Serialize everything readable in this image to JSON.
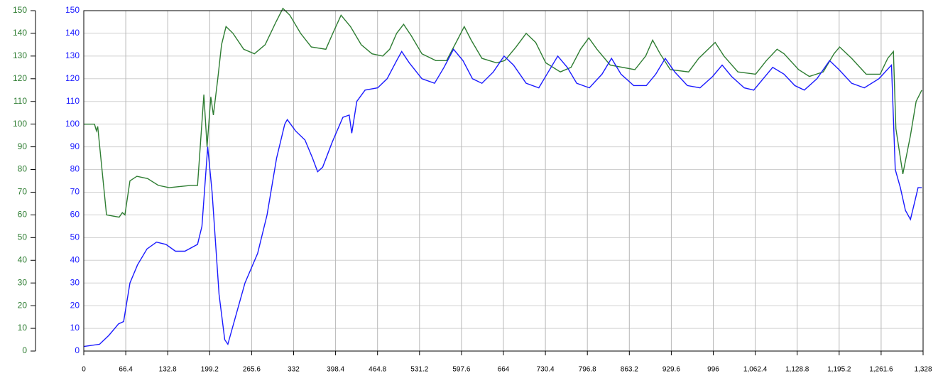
{
  "chart_data": {
    "type": "line",
    "xlim": [
      0,
      1328
    ],
    "xticks": [
      0,
      66.4,
      132.8,
      199.2,
      265.6,
      332,
      398.4,
      464.8,
      531.2,
      597.6,
      664,
      730.4,
      796.8,
      863.2,
      929.6,
      996,
      {
        "value": 1062.4,
        "label": "1,062.4"
      },
      {
        "value": 1128.8,
        "label": "1,128.8"
      },
      {
        "value": 1195.2,
        "label": "1,195.2"
      },
      {
        "value": 1261.6,
        "label": "1,261.6"
      },
      {
        "value": 1328,
        "label": "1,328"
      }
    ],
    "ylim": [
      0,
      150
    ],
    "yticks": [
      0,
      10,
      20,
      30,
      40,
      50,
      60,
      70,
      80,
      90,
      100,
      110,
      120,
      130,
      140,
      150
    ],
    "y2lim": [
      0,
      150
    ],
    "y2ticks": [
      0,
      10,
      20,
      30,
      40,
      50,
      60,
      70,
      80,
      90,
      100,
      110,
      120,
      130,
      140,
      150
    ],
    "grid": true,
    "y_color": "#2e7d32",
    "y2_color": "#1a1aff",
    "series": [
      {
        "color": "#2e7d32",
        "axis": "y",
        "x": [
          0,
          17,
          20,
          22,
          36,
          56,
          61,
          65,
          73,
          84,
          101,
          118,
          135,
          169,
          180,
          190,
          195,
          201,
          205,
          212,
          218,
          225,
          236,
          253,
          270,
          287,
          304,
          315,
          326,
          343,
          360,
          383,
          394,
          407,
          422,
          439,
          456,
          473,
          484,
          495,
          506,
          518,
          535,
          557,
          574,
          591,
          602,
          613,
          630,
          653,
          666,
          684,
          700,
          715,
          731,
          754,
          771,
          786,
          799,
          812,
          833,
          872,
          889,
          900,
          912,
          928,
          957,
          973,
          999,
          1013,
          1035,
          1063,
          1080,
          1097,
          1108,
          1131,
          1148,
          1170,
          1187,
          1196,
          1215,
          1238,
          1260,
          1272,
          1281,
          1285,
          1296,
          1308,
          1317,
          1326
        ],
        "values": [
          100,
          100,
          97,
          99,
          60,
          59,
          61,
          60,
          75,
          77,
          76,
          73,
          72,
          73,
          73,
          113,
          90,
          112,
          104,
          120,
          135,
          143,
          140,
          133,
          131,
          135,
          145,
          151,
          148,
          140,
          134,
          133,
          140,
          148,
          143,
          135,
          131,
          130,
          133,
          140,
          144,
          139,
          131,
          128,
          128,
          137,
          143,
          137,
          129,
          127,
          128,
          134,
          140,
          136,
          127,
          123,
          125,
          133,
          138,
          133,
          126,
          124,
          130,
          137,
          131,
          124,
          123,
          129,
          136,
          130,
          123,
          122,
          128,
          133,
          131,
          124,
          121,
          123,
          131,
          134,
          129,
          122,
          122,
          129,
          132,
          98,
          78,
          95,
          110,
          115
        ]
      },
      {
        "color": "#1a1aff",
        "axis": "y2",
        "x": [
          0,
          25,
          40,
          55,
          63,
          73,
          85,
          100,
          115,
          130,
          145,
          160,
          180,
          187,
          196,
          203,
          214,
          223,
          228,
          240,
          255,
          275,
          290,
          305,
          318,
          322,
          335,
          350,
          362,
          370,
          378,
          393,
          410,
          420,
          424,
          432,
          445,
          465,
          480,
          495,
          503,
          515,
          535,
          555,
          570,
          585,
          600,
          615,
          630,
          648,
          665,
          680,
          700,
          720,
          735,
          750,
          765,
          780,
          800,
          820,
          835,
          850,
          870,
          890,
          905,
          920,
          935,
          955,
          975,
          995,
          1010,
          1025,
          1045,
          1060,
          1075,
          1090,
          1108,
          1125,
          1140,
          1160,
          1180,
          1195,
          1215,
          1235,
          1258,
          1278,
          1284,
          1292,
          1300,
          1308,
          1315,
          1320,
          1326
        ],
        "values": [
          2,
          3,
          7,
          12,
          13,
          30,
          38,
          45,
          48,
          47,
          44,
          44,
          47,
          55,
          90,
          70,
          25,
          5,
          3,
          15,
          30,
          43,
          60,
          85,
          100,
          102,
          97,
          93,
          85,
          79,
          81,
          92,
          103,
          104,
          96,
          110,
          115,
          116,
          120,
          128,
          132,
          127,
          120,
          118,
          125,
          133,
          128,
          120,
          118,
          123,
          130,
          126,
          118,
          116,
          123,
          130,
          125,
          118,
          116,
          122,
          129,
          122,
          117,
          117,
          122,
          129,
          123,
          117,
          116,
          121,
          126,
          121,
          116,
          115,
          120,
          125,
          122,
          117,
          115,
          120,
          128,
          124,
          118,
          116,
          120,
          126,
          80,
          72,
          62,
          58,
          66,
          72,
          72
        ]
      }
    ]
  }
}
